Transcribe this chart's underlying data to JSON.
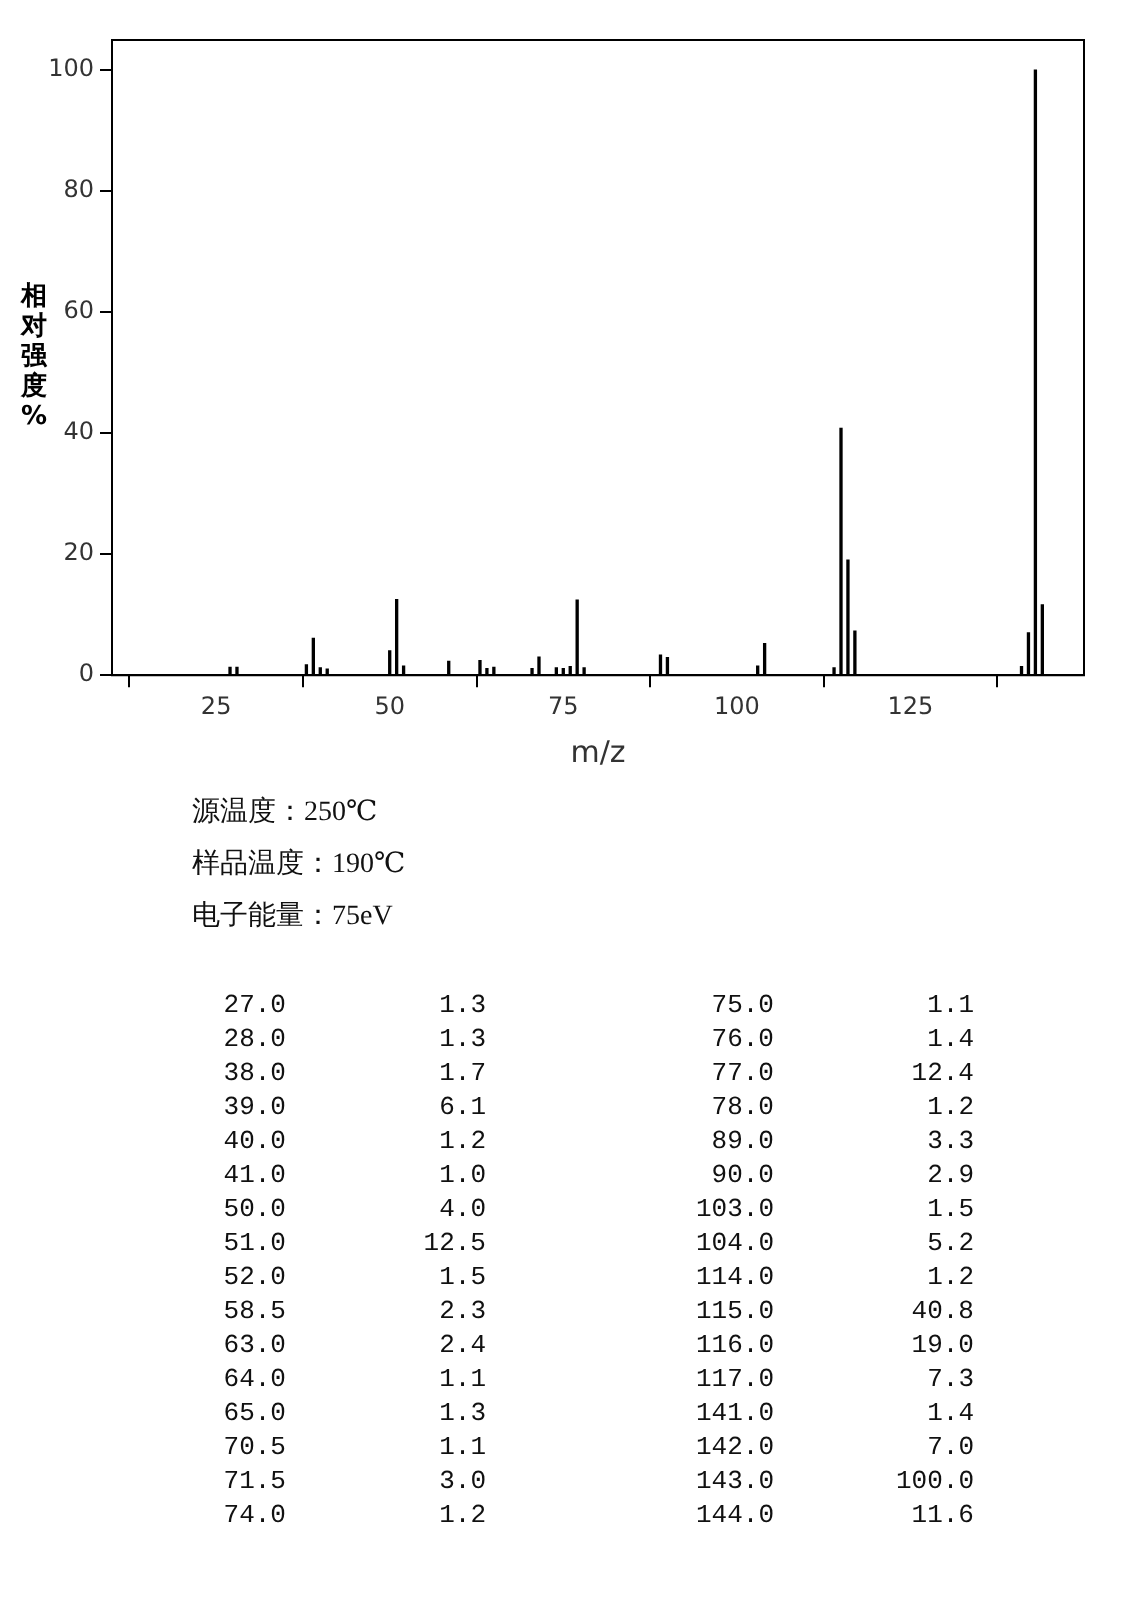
{
  "chart_data": [
    {
      "type": "bar",
      "xlabel": "m/z",
      "ylabel": "相对强度%",
      "x": [
        27,
        28,
        38,
        39,
        40,
        41,
        50,
        51,
        52,
        58.5,
        63,
        64,
        65,
        70.5,
        71.5,
        74,
        75,
        76,
        77,
        78,
        89,
        90,
        103,
        104,
        114,
        115,
        116,
        117,
        141,
        142,
        143,
        144
      ],
      "values": [
        1.3,
        1.3,
        1.7,
        6.1,
        1.2,
        1.0,
        4.0,
        12.5,
        1.5,
        2.3,
        2.4,
        1.1,
        1.3,
        1.1,
        3.0,
        1.2,
        1.1,
        1.4,
        12.4,
        1.2,
        3.3,
        2.9,
        1.5,
        5.2,
        1.2,
        40.8,
        19.0,
        7.3,
        1.4,
        7.0,
        100.0,
        11.6
      ],
      "color": "#000000",
      "xlim": [
        10,
        150
      ],
      "xticks": [
        25,
        50,
        75,
        100,
        125
      ],
      "ylim": [
        0,
        105
      ],
      "yticks": [
        0,
        20,
        40,
        60,
        80,
        100
      ],
      "grid": false,
      "annotations": [
        "源温度：250℃",
        "样品温度：190℃",
        "电子能量：75eV"
      ]
    },
    {
      "type": "other",
      "categories": [
        "27.0",
        "28.0",
        "38.0",
        "39.0",
        "40.0",
        "41.0",
        "50.0",
        "51.0",
        "52.0",
        "58.5",
        "63.0",
        "64.0",
        "65.0",
        "70.5",
        "71.5",
        "74.0",
        "75.0",
        "76.0",
        "77.0",
        "78.0",
        "89.0",
        "90.0",
        "103.0",
        "104.0",
        "114.0",
        "115.0",
        "116.0",
        "117.0",
        "141.0",
        "142.0",
        "143.0",
        "144.0"
      ],
      "values": [
        1.3,
        1.3,
        1.7,
        6.1,
        1.2,
        1.0,
        4.0,
        12.5,
        1.5,
        2.3,
        2.4,
        1.1,
        1.3,
        1.1,
        3.0,
        1.2,
        1.1,
        1.4,
        12.4,
        1.2,
        3.3,
        2.9,
        1.5,
        5.2,
        1.2,
        40.8,
        19.0,
        7.3,
        1.4,
        7.0,
        100.0,
        11.6
      ],
      "value_labels": [
        "1.3",
        "1.3",
        "1.7",
        "6.1",
        "1.2",
        "1.0",
        "4.0",
        "12.5",
        "1.5",
        "2.3",
        "2.4",
        "1.1",
        "1.3",
        "1.1",
        "3.0",
        "1.2",
        "1.1",
        "1.4",
        "12.4",
        "1.2",
        "3.3",
        "2.9",
        "1.5",
        "5.2",
        "1.2",
        "40.8",
        "19.0",
        "7.3",
        "1.4",
        "7.0",
        "100.0",
        "11.6"
      ]
    }
  ]
}
